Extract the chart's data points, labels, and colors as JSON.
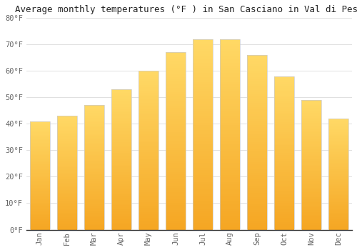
{
  "title": "Average monthly temperatures (°F ) in San Casciano in Val di Pesa",
  "months": [
    "Jan",
    "Feb",
    "Mar",
    "Apr",
    "May",
    "Jun",
    "Jul",
    "Aug",
    "Sep",
    "Oct",
    "Nov",
    "Dec"
  ],
  "values": [
    41,
    43,
    47,
    53,
    60,
    67,
    72,
    72,
    66,
    58,
    49,
    42
  ],
  "bar_color_bottom": "#F5A623",
  "bar_color_top": "#FFD966",
  "background_color": "#FFFFFF",
  "ylim": [
    0,
    80
  ],
  "yticks": [
    0,
    10,
    20,
    30,
    40,
    50,
    60,
    70,
    80
  ],
  "ytick_labels": [
    "0°F",
    "10°F",
    "20°F",
    "30°F",
    "40°F",
    "50°F",
    "60°F",
    "70°F",
    "80°F"
  ],
  "title_fontsize": 9,
  "tick_fontsize": 7.5,
  "grid_color": "#e0e0e0",
  "bar_edge_color": "#cccccc",
  "bar_width": 0.75
}
